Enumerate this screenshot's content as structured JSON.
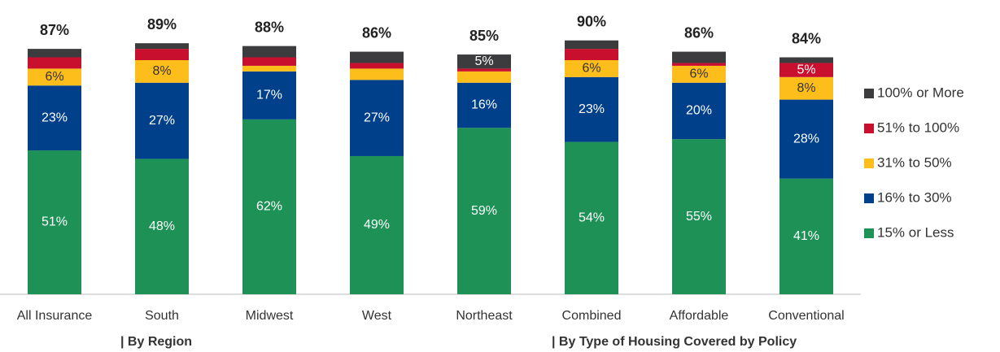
{
  "chart_data": {
    "type": "stacked_bar",
    "categories": [
      "All Insurance",
      "South",
      "Midwest",
      "West",
      "Northeast",
      "Combined",
      "Affordable",
      "Conventional"
    ],
    "series": [
      {
        "name": "15% or Less",
        "color": "#1e9157",
        "values": [
          51,
          48,
          62,
          49,
          59,
          54,
          55,
          41
        ],
        "value_labels": [
          "51%",
          "48%",
          "62%",
          "49%",
          "59%",
          "54%",
          "55%",
          "41%"
        ]
      },
      {
        "name": "16% to 30%",
        "color": "#003f8a",
        "values": [
          23,
          27,
          17,
          27,
          16,
          23,
          20,
          28
        ],
        "value_labels": [
          "23%",
          "27%",
          "17%",
          "27%",
          "16%",
          "23%",
          "20%",
          "28%"
        ]
      },
      {
        "name": "31% to 50%",
        "color": "#fdbd1a",
        "values": [
          6,
          8,
          2,
          4,
          4,
          6,
          6,
          8
        ],
        "value_labels": [
          "6%",
          "8%",
          null,
          null,
          null,
          "6%",
          "6%",
          "8%"
        ]
      },
      {
        "name": "51% to 100%",
        "color": "#c8102e",
        "values": [
          4,
          4,
          3,
          2,
          1,
          4,
          1,
          5
        ],
        "value_labels": [
          null,
          null,
          null,
          null,
          null,
          null,
          null,
          "5%"
        ]
      },
      {
        "name": "100% or More",
        "color": "#3c3c3e",
        "values": [
          3,
          2,
          4,
          4,
          5,
          3,
          4,
          2
        ],
        "value_labels": [
          null,
          null,
          null,
          null,
          "5%",
          null,
          null,
          null
        ]
      }
    ],
    "totals": [
      87,
      89,
      88,
      86,
      85,
      90,
      86,
      84
    ],
    "total_labels": [
      "87%",
      "89%",
      "88%",
      "86%",
      "85%",
      "90%",
      "86%",
      "84%"
    ],
    "group_labels": [
      "| By Region",
      "| By Type of Housing Covered by Policy"
    ],
    "ylim": [
      0,
      100
    ],
    "legend": "right"
  }
}
